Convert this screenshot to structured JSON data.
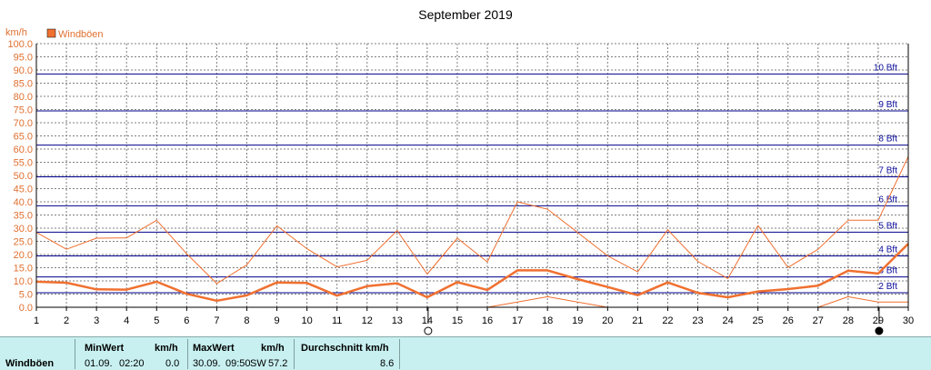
{
  "chart_data": {
    "type": "line",
    "title": "September 2019",
    "ylabel": "km/h",
    "ylim": [
      0,
      100
    ],
    "yticks": [
      "0.0",
      "5.0",
      "10.0",
      "15.0",
      "20.0",
      "25.0",
      "30.0",
      "35.0",
      "40.0",
      "45.0",
      "50.0",
      "55.0",
      "60.0",
      "65.0",
      "70.0",
      "75.0",
      "80.0",
      "85.0",
      "90.0",
      "95.0",
      "100.0"
    ],
    "categories": [
      "1",
      "2",
      "3",
      "4",
      "5",
      "6",
      "7",
      "8",
      "9",
      "10",
      "11",
      "12",
      "13",
      "14",
      "15",
      "16",
      "17",
      "18",
      "19",
      "20",
      "21",
      "22",
      "23",
      "24",
      "25",
      "26",
      "27",
      "28",
      "29",
      "30"
    ],
    "legend": [
      "Windböen"
    ],
    "grid": true,
    "series": [
      {
        "name": "Windböen",
        "role": "mean",
        "values": [
          9.7,
          9.3,
          6.8,
          6.7,
          9.7,
          5.1,
          2.5,
          4.5,
          9.4,
          9.2,
          4.4,
          8.0,
          9.1,
          3.8,
          9.5,
          6.6,
          14.0,
          14.0,
          10.7,
          7.7,
          4.6,
          9.4,
          5.5,
          3.8,
          6.0,
          6.9,
          8.2,
          13.9,
          12.8,
          24.1
        ]
      },
      {
        "role": "max",
        "values": [
          28.4,
          22.0,
          26.2,
          26.3,
          33.0,
          20.3,
          9.0,
          16.1,
          30.9,
          22.2,
          15.3,
          17.8,
          29.1,
          12.6,
          26.2,
          17.2,
          40.0,
          37.2,
          28.4,
          19.5,
          13.4,
          29.4,
          17.4,
          10.9,
          31.0,
          15.1,
          22.0,
          33.0,
          33.0,
          57.2
        ]
      },
      {
        "role": "min",
        "values": [
          0,
          0,
          0,
          0,
          0,
          0,
          0,
          0,
          0,
          0,
          0,
          0,
          0,
          0,
          0,
          0,
          2.0,
          4.0,
          2.0,
          0,
          0,
          0,
          0,
          0,
          0,
          0,
          0,
          4.0,
          2.0,
          2.0
        ]
      }
    ],
    "beaufort_lines": [
      {
        "label": "2 Bft",
        "value": 5.5
      },
      {
        "label": "3 Bft",
        "value": 11.5
      },
      {
        "label": "4 Bft",
        "value": 19.5
      },
      {
        "label": "5 Bft",
        "value": 28.5
      },
      {
        "label": "6 Bft",
        "value": 38.5
      },
      {
        "label": "7 Bft",
        "value": 49.5
      },
      {
        "label": "8 Bft",
        "value": 61.5
      },
      {
        "label": "9 Bft",
        "value": 74.5
      },
      {
        "label": "10 Bft",
        "value": 88.5
      }
    ],
    "moon_markers": [
      {
        "day": 14,
        "phase": "full-moon"
      },
      {
        "day": 29,
        "phase": "new-moon"
      }
    ]
  },
  "colors": {
    "series": "#f07030",
    "beaufort": "#00008b",
    "grid": "#808080",
    "panel": "#c8f0f0"
  },
  "stats": {
    "row_label": "Windböen",
    "min_header": "MinWert",
    "min_unit": "km/h",
    "min_date": "01.09.",
    "min_time": "02:20",
    "min_value": "0.0",
    "max_header": "MaxWert",
    "max_unit": "km/h",
    "max_date": "30.09.",
    "max_time": "09:50",
    "max_dir": "SW",
    "max_value": "57.2",
    "avg_header": "Durchschnitt km/h",
    "avg_value": "8.6"
  }
}
